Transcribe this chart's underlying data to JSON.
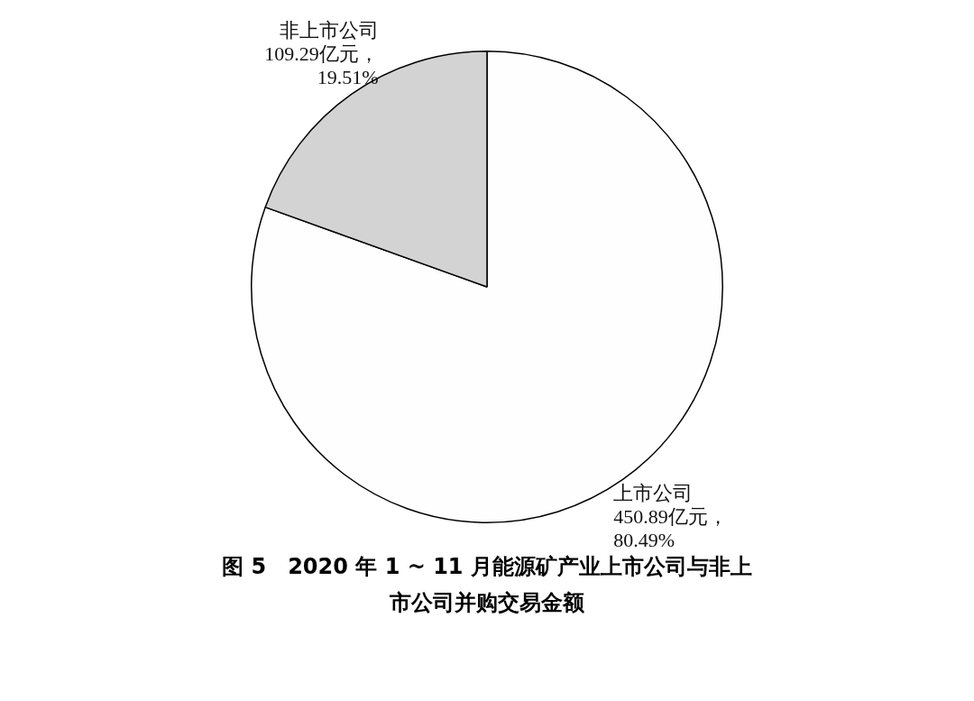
{
  "chart_data": {
    "type": "pie",
    "title": "图 5　2020 年 1 ~ 11 月能源矿产业上市公司与非上市公司并购交易金额",
    "categories": [
      "上市公司",
      "非上市公司"
    ],
    "values": [
      450.89,
      109.29
    ],
    "colors": [
      "#fefefe",
      "#d3d3d3"
    ],
    "value_labels": [
      "450.89亿元，\n80.49%",
      "109.29亿元，\n19.51%"
    ],
    "legend": false
  }
}
